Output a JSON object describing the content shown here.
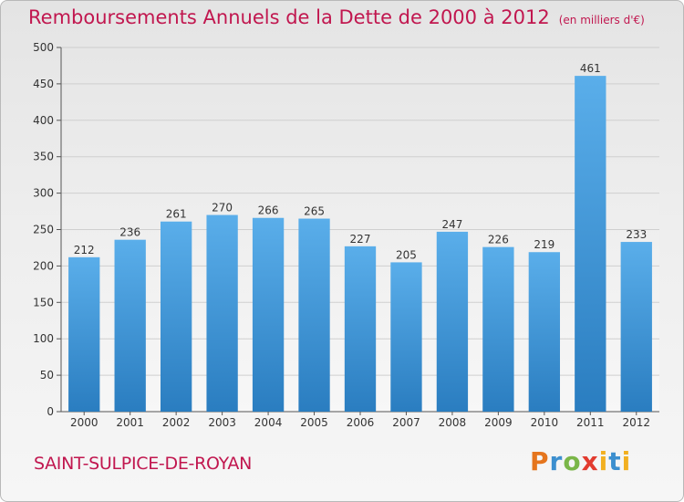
{
  "title": "Remboursements Annuels de la Dette de 2000 à 2012",
  "unit": "(en milliers d'€)",
  "city": "SAINT-SULPICE-DE-ROYAN",
  "logo": {
    "p": "P",
    "r": "r",
    "o": "o",
    "x": "x",
    "i": "i",
    "t": "t",
    "i2": "i"
  },
  "colors": {
    "accent": "#c1174f",
    "bar_light": "#5aaeea",
    "bar_dark": "#2a7dc0"
  },
  "chart_data": {
    "type": "bar",
    "title": "Remboursements Annuels de la Dette de 2000 à 2012",
    "categories": [
      "2000",
      "2001",
      "2002",
      "2003",
      "2004",
      "2005",
      "2006",
      "2007",
      "2008",
      "2009",
      "2010",
      "2011",
      "2012"
    ],
    "values": [
      212,
      236,
      261,
      270,
      266,
      265,
      227,
      205,
      247,
      226,
      219,
      461,
      233
    ],
    "ylim": [
      0,
      500
    ],
    "yticks": [
      0,
      50,
      100,
      150,
      200,
      250,
      300,
      350,
      400,
      450,
      500
    ],
    "grid": true,
    "xlabel": "",
    "ylabel": ""
  }
}
